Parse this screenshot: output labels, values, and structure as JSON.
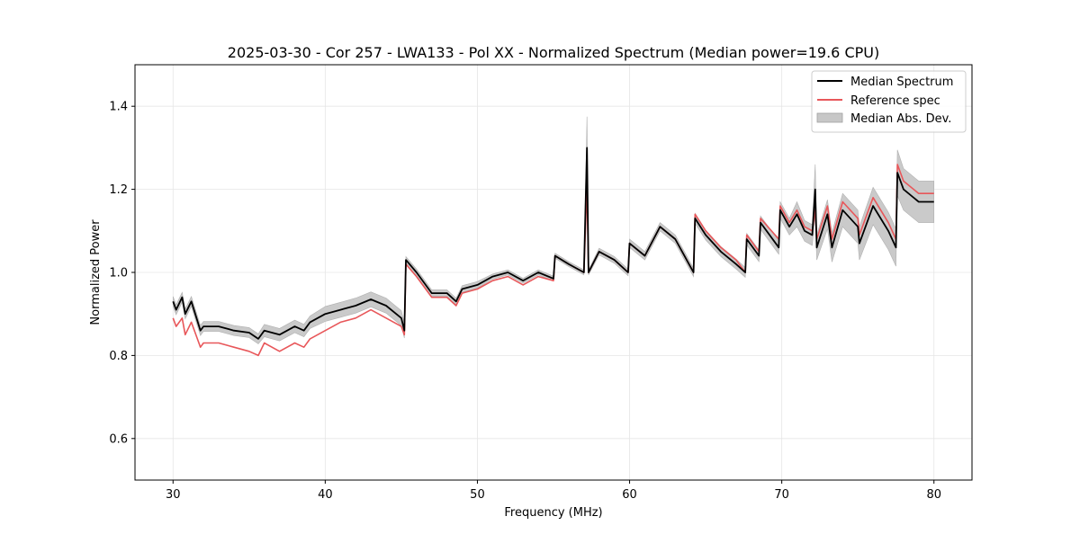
{
  "chart_data": {
    "type": "line",
    "title": "2025-03-30 - Cor 257 - LWA133 - Pol XX - Normalized Spectrum (Median power=19.6 CPU)",
    "xlabel": "Frequency (MHz)",
    "ylabel": "Normalized Power",
    "xlim": [
      27.5,
      82.5
    ],
    "ylim": [
      0.5,
      1.5
    ],
    "xticks": [
      30,
      40,
      50,
      60,
      70,
      80
    ],
    "yticks": [
      0.6,
      0.8,
      1.0,
      1.2,
      1.4
    ],
    "grid": true,
    "legend_position": "top-right",
    "x": [
      30.0,
      30.2,
      30.6,
      30.8,
      31.2,
      31.8,
      32.0,
      33.0,
      34.0,
      35.0,
      35.6,
      36.0,
      37.0,
      38.0,
      38.6,
      39.0,
      40.0,
      41.0,
      42.0,
      43.0,
      44.0,
      45.0,
      45.2,
      45.3,
      46.0,
      47.0,
      48.0,
      48.6,
      49.0,
      50.0,
      51.0,
      52.0,
      53.0,
      54.0,
      55.0,
      55.1,
      56.0,
      57.0,
      57.2,
      57.3,
      58.0,
      59.0,
      59.9,
      60.0,
      61.0,
      62.0,
      63.0,
      64.2,
      64.3,
      65.0,
      66.0,
      67.0,
      67.6,
      67.7,
      68.5,
      68.6,
      69.8,
      69.9,
      70.5,
      71.0,
      71.5,
      72.0,
      72.2,
      72.3,
      73.0,
      73.3,
      74.0,
      75.0,
      75.1,
      76.0,
      77.0,
      77.5,
      77.6,
      78.0,
      79.0,
      80.0
    ],
    "series": [
      {
        "name": "Median Spectrum",
        "color": "#000000",
        "values": [
          0.93,
          0.91,
          0.94,
          0.9,
          0.93,
          0.86,
          0.87,
          0.87,
          0.86,
          0.855,
          0.84,
          0.86,
          0.85,
          0.87,
          0.86,
          0.88,
          0.9,
          0.91,
          0.92,
          0.935,
          0.92,
          0.89,
          0.86,
          1.03,
          1.0,
          0.95,
          0.95,
          0.93,
          0.96,
          0.97,
          0.99,
          1.0,
          0.98,
          1.0,
          0.985,
          1.04,
          1.02,
          1.0,
          1.3,
          1.0,
          1.05,
          1.03,
          1.0,
          1.07,
          1.04,
          1.11,
          1.08,
          1.0,
          1.13,
          1.09,
          1.05,
          1.02,
          1.0,
          1.08,
          1.04,
          1.12,
          1.06,
          1.15,
          1.11,
          1.14,
          1.1,
          1.09,
          1.2,
          1.06,
          1.14,
          1.06,
          1.15,
          1.11,
          1.07,
          1.16,
          1.1,
          1.06,
          1.24,
          1.2,
          1.17,
          1.17
        ]
      },
      {
        "name": "Reference spec",
        "color": "#e8575a",
        "values": [
          0.89,
          0.87,
          0.89,
          0.85,
          0.88,
          0.82,
          0.83,
          0.83,
          0.82,
          0.81,
          0.8,
          0.83,
          0.81,
          0.83,
          0.82,
          0.84,
          0.86,
          0.88,
          0.89,
          0.91,
          0.89,
          0.87,
          0.85,
          1.02,
          0.99,
          0.94,
          0.94,
          0.92,
          0.95,
          0.96,
          0.98,
          0.99,
          0.97,
          0.99,
          0.98,
          1.04,
          1.02,
          1.0,
          1.21,
          1.0,
          1.05,
          1.03,
          1.0,
          1.07,
          1.04,
          1.11,
          1.08,
          1.0,
          1.14,
          1.1,
          1.06,
          1.03,
          1.0,
          1.09,
          1.05,
          1.13,
          1.08,
          1.16,
          1.12,
          1.15,
          1.11,
          1.1,
          1.15,
          1.08,
          1.16,
          1.08,
          1.17,
          1.13,
          1.09,
          1.18,
          1.12,
          1.08,
          1.26,
          1.22,
          1.19,
          1.19
        ]
      },
      {
        "name": "Median Abs. Dev.",
        "type": "band",
        "color": "#c7c7c7",
        "half_width": [
          0.012,
          0.012,
          0.012,
          0.012,
          0.012,
          0.012,
          0.012,
          0.012,
          0.012,
          0.012,
          0.012,
          0.015,
          0.015,
          0.015,
          0.015,
          0.015,
          0.018,
          0.018,
          0.018,
          0.018,
          0.018,
          0.018,
          0.018,
          0.008,
          0.008,
          0.008,
          0.008,
          0.008,
          0.008,
          0.008,
          0.006,
          0.006,
          0.006,
          0.006,
          0.006,
          0.006,
          0.006,
          0.006,
          0.075,
          0.006,
          0.008,
          0.008,
          0.008,
          0.01,
          0.01,
          0.01,
          0.01,
          0.01,
          0.012,
          0.012,
          0.012,
          0.012,
          0.012,
          0.014,
          0.014,
          0.016,
          0.016,
          0.02,
          0.02,
          0.03,
          0.025,
          0.025,
          0.06,
          0.03,
          0.035,
          0.035,
          0.04,
          0.04,
          0.04,
          0.045,
          0.045,
          0.045,
          0.055,
          0.05,
          0.05,
          0.05
        ]
      }
    ]
  }
}
